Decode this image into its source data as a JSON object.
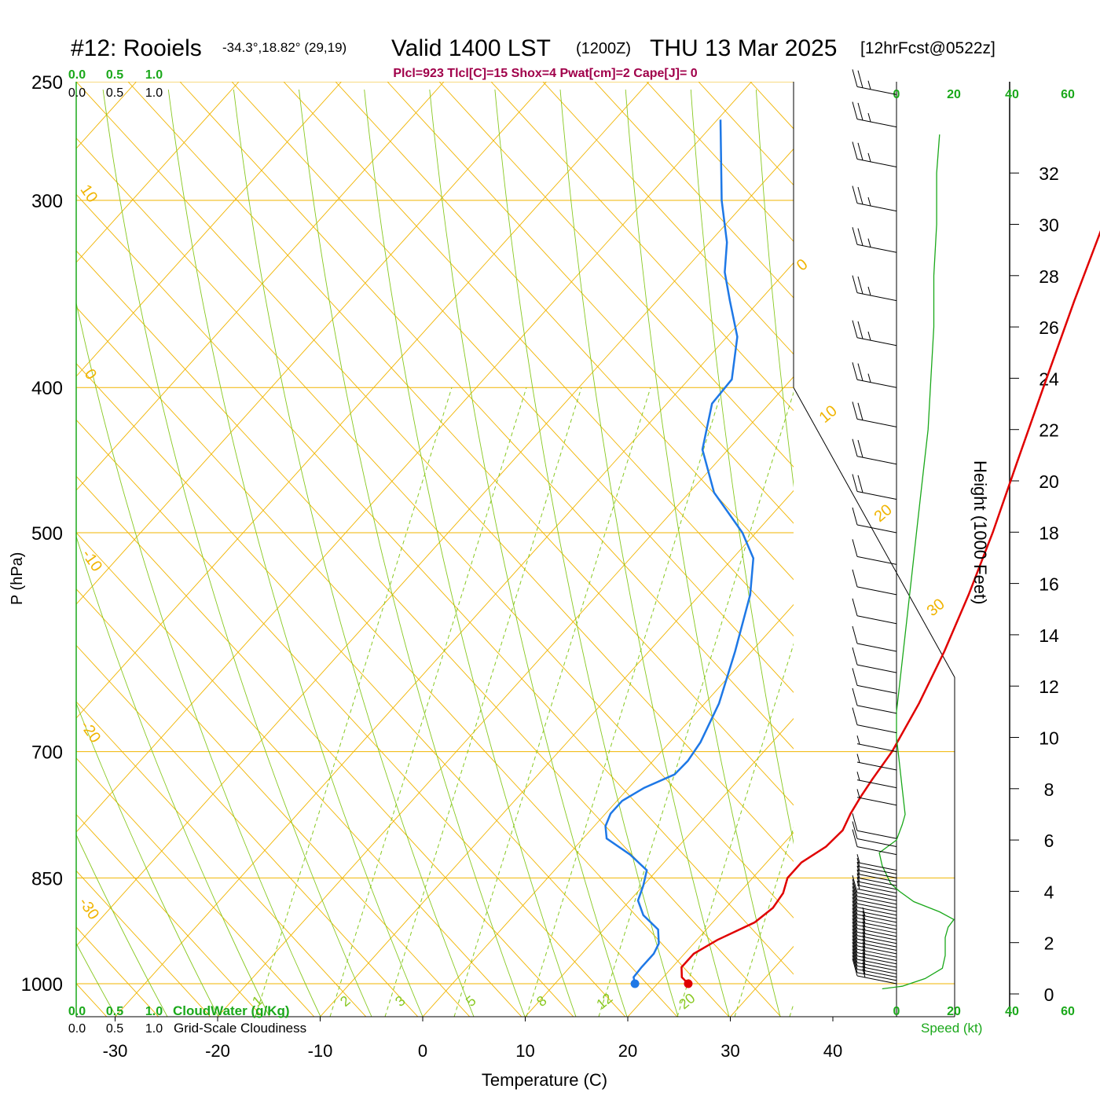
{
  "header": {
    "station": "#12: Rooiels",
    "coords": "-34.3°,18.82° (29,19)",
    "valid": "Valid 1400 LST",
    "utc": "(1200Z)",
    "date": "THU 13 Mar 2025",
    "forecast": "[12hrFcst@0522z]"
  },
  "indices_text": "Plcl=923 Tlcl[C]=15 Shox=4 Pwat[cm]=2 Cape[J]= 0",
  "colors": {
    "isobar": "#f0b400",
    "dry_adiabat": "#f0b400",
    "moist_adiabat": "#88c820",
    "mixing_ratio": "#88c820",
    "temperature": "#e00000",
    "dewpoint": "#1e78e6",
    "axis_green": "#1aa81a",
    "indices": "#a0004a"
  },
  "chart_data": {
    "type": "skew-t",
    "xlabel": "Temperature (C)",
    "ylabel": "P (hPa)",
    "right_label": "Height (1000 Feet)",
    "x_ticks": [
      "-30",
      "-20",
      "-10",
      "0",
      "10",
      "20",
      "30",
      "40"
    ],
    "p_ticks": [
      "250",
      "300",
      "400",
      "500",
      "700",
      "850",
      "1000"
    ],
    "height_ticks": [
      "0",
      "2",
      "4",
      "6",
      "8",
      "10",
      "12",
      "14",
      "16",
      "18",
      "20",
      "22",
      "24",
      "26",
      "28",
      "30",
      "32"
    ],
    "dry_adiabat_labels": [
      "10",
      "0",
      "-10",
      "-20",
      "-30",
      "0",
      "10",
      "20",
      "30"
    ],
    "mixing_ratio_labels": [
      "1",
      "2",
      "3",
      "5",
      "8",
      "12",
      "20"
    ],
    "cloud_axis_top_green": [
      "0.0",
      "0.5",
      "1.0"
    ],
    "cloud_axis_top_black": [
      "0.0",
      "0.5",
      "1.0"
    ],
    "cloud_axis_bottom_green": [
      "0.0",
      "0.5",
      "1.0"
    ],
    "cloud_axis_bottom_black": [
      "0.0",
      "0.5",
      "1.0"
    ],
    "cloudwater_label": "CloudWater (g/Kg)",
    "cloudiness_label": "Grid-Scale Cloudiness",
    "speed_ticks": [
      "0",
      "20",
      "40",
      "60"
    ],
    "speed_label": "Speed (kt)",
    "temperature_profile": [
      {
        "p": 1000,
        "t": 23.0
      },
      {
        "p": 990,
        "t": 21.8
      },
      {
        "p": 975,
        "t": 20.9
      },
      {
        "p": 955,
        "t": 20.9
      },
      {
        "p": 935,
        "t": 22.0
      },
      {
        "p": 910,
        "t": 24.1
      },
      {
        "p": 890,
        "t": 24.6
      },
      {
        "p": 870,
        "t": 24.3
      },
      {
        "p": 850,
        "t": 23.4
      },
      {
        "p": 830,
        "t": 23.4
      },
      {
        "p": 810,
        "t": 24.4
      },
      {
        "p": 790,
        "t": 24.6
      },
      {
        "p": 770,
        "t": 23.9
      },
      {
        "p": 750,
        "t": 23.4
      },
      {
        "p": 730,
        "t": 23.0
      },
      {
        "p": 700,
        "t": 22.5
      },
      {
        "p": 650,
        "t": 20.9
      },
      {
        "p": 600,
        "t": 18.8
      },
      {
        "p": 550,
        "t": 16.2
      },
      {
        "p": 500,
        "t": 13.1
      },
      {
        "p": 450,
        "t": 9.4
      },
      {
        "p": 400,
        "t": 5.3
      },
      {
        "p": 350,
        "t": 0.7
      },
      {
        "p": 300,
        "t": -4.4
      },
      {
        "p": 265,
        "t": -8.8
      }
    ],
    "dewpoint_profile": [
      {
        "p": 1000,
        "t": 17.8
      },
      {
        "p": 990,
        "t": 17.1
      },
      {
        "p": 975,
        "t": 17.0
      },
      {
        "p": 955,
        "t": 17.0
      },
      {
        "p": 940,
        "t": 16.6
      },
      {
        "p": 920,
        "t": 15.3
      },
      {
        "p": 900,
        "t": 12.6
      },
      {
        "p": 880,
        "t": 10.8
      },
      {
        "p": 860,
        "t": 10.0
      },
      {
        "p": 840,
        "t": 9.0
      },
      {
        "p": 820,
        "t": 6.0
      },
      {
        "p": 800,
        "t": 2.3
      },
      {
        "p": 785,
        "t": 1.1
      },
      {
        "p": 770,
        "t": 0.5
      },
      {
        "p": 755,
        "t": 0.5
      },
      {
        "p": 740,
        "t": 1.5
      },
      {
        "p": 725,
        "t": 3.3
      },
      {
        "p": 710,
        "t": 3.4
      },
      {
        "p": 690,
        "t": 3.0
      },
      {
        "p": 650,
        "t": 1.4
      },
      {
        "p": 600,
        "t": -1.6
      },
      {
        "p": 550,
        "t": -5.1
      },
      {
        "p": 520,
        "t": -8.0
      },
      {
        "p": 500,
        "t": -11.3
      },
      {
        "p": 470,
        "t": -17.6
      },
      {
        "p": 440,
        "t": -22.5
      },
      {
        "p": 410,
        "t": -25.6
      },
      {
        "p": 395,
        "t": -25.8
      },
      {
        "p": 370,
        "t": -29.0
      },
      {
        "p": 350,
        "t": -32.9
      },
      {
        "p": 335,
        "t": -35.9
      },
      {
        "p": 320,
        "t": -38.3
      },
      {
        "p": 300,
        "t": -42.5
      },
      {
        "p": 265,
        "t": -49.7
      }
    ],
    "surface_temperature": 23.0,
    "surface_dewpoint": 17.8,
    "wind_speed_profile": [
      {
        "h": 0.2,
        "kt": -5
      },
      {
        "h": 0.3,
        "kt": 2
      },
      {
        "h": 0.6,
        "kt": 10
      },
      {
        "h": 1.0,
        "kt": 16
      },
      {
        "h": 1.5,
        "kt": 17
      },
      {
        "h": 2.2,
        "kt": 17
      },
      {
        "h": 2.6,
        "kt": 18
      },
      {
        "h": 2.9,
        "kt": 20
      },
      {
        "h": 3.2,
        "kt": 15
      },
      {
        "h": 3.6,
        "kt": 6
      },
      {
        "h": 4.0,
        "kt": 1
      },
      {
        "h": 4.3,
        "kt": -2
      },
      {
        "h": 5.0,
        "kt": -5
      },
      {
        "h": 5.5,
        "kt": -6
      },
      {
        "h": 6.0,
        "kt": 0
      },
      {
        "h": 6.6,
        "kt": 2
      },
      {
        "h": 7.0,
        "kt": 3
      },
      {
        "h": 8.0,
        "kt": 2
      },
      {
        "h": 9.0,
        "kt": 1
      },
      {
        "h": 10.0,
        "kt": 0
      },
      {
        "h": 11.0,
        "kt": 0
      },
      {
        "h": 12.0,
        "kt": 1
      },
      {
        "h": 14.0,
        "kt": 3
      },
      {
        "h": 16.0,
        "kt": 5
      },
      {
        "h": 18.0,
        "kt": 7
      },
      {
        "h": 20.0,
        "kt": 9
      },
      {
        "h": 22.0,
        "kt": 11
      },
      {
        "h": 24.0,
        "kt": 12
      },
      {
        "h": 26.0,
        "kt": 13
      },
      {
        "h": 28.0,
        "kt": 13
      },
      {
        "h": 30.0,
        "kt": 14
      },
      {
        "h": 32.0,
        "kt": 14
      },
      {
        "h": 33.5,
        "kt": 15
      }
    ],
    "wind_barbs": [
      {
        "p": 1000,
        "kt": 15
      },
      {
        "p": 995,
        "kt": 15
      },
      {
        "p": 990,
        "kt": 15
      },
      {
        "p": 985,
        "kt": 15
      },
      {
        "p": 980,
        "kt": 15
      },
      {
        "p": 975,
        "kt": 15
      },
      {
        "p": 970,
        "kt": 15
      },
      {
        "p": 965,
        "kt": 15
      },
      {
        "p": 960,
        "kt": 15
      },
      {
        "p": 955,
        "kt": 15
      },
      {
        "p": 950,
        "kt": 15
      },
      {
        "p": 945,
        "kt": 15
      },
      {
        "p": 940,
        "kt": 15
      },
      {
        "p": 935,
        "kt": 15
      },
      {
        "p": 930,
        "kt": 15
      },
      {
        "p": 925,
        "kt": 15
      },
      {
        "p": 920,
        "kt": 15
      },
      {
        "p": 915,
        "kt": 15
      },
      {
        "p": 910,
        "kt": 15
      },
      {
        "p": 905,
        "kt": 10
      },
      {
        "p": 900,
        "kt": 10
      },
      {
        "p": 895,
        "kt": 10
      },
      {
        "p": 890,
        "kt": 10
      },
      {
        "p": 885,
        "kt": 10
      },
      {
        "p": 880,
        "kt": 10
      },
      {
        "p": 875,
        "kt": 5
      },
      {
        "p": 870,
        "kt": 5
      },
      {
        "p": 865,
        "kt": 5
      },
      {
        "p": 860,
        "kt": 5
      },
      {
        "p": 855,
        "kt": 5
      },
      {
        "p": 850,
        "kt": 5
      },
      {
        "p": 845,
        "kt": 5
      },
      {
        "p": 840,
        "kt": 5
      },
      {
        "p": 820,
        "kt": 10
      },
      {
        "p": 810,
        "kt": 10
      },
      {
        "p": 800,
        "kt": 10
      },
      {
        "p": 760,
        "kt": 5
      },
      {
        "p": 740,
        "kt": 5
      },
      {
        "p": 720,
        "kt": 5
      },
      {
        "p": 700,
        "kt": 5
      },
      {
        "p": 680,
        "kt": 10
      },
      {
        "p": 660,
        "kt": 10
      },
      {
        "p": 640,
        "kt": 10
      },
      {
        "p": 620,
        "kt": 10
      },
      {
        "p": 600,
        "kt": 10
      },
      {
        "p": 575,
        "kt": 10
      },
      {
        "p": 550,
        "kt": 10
      },
      {
        "p": 525,
        "kt": 10
      },
      {
        "p": 500,
        "kt": 10
      },
      {
        "p": 475,
        "kt": 20
      },
      {
        "p": 450,
        "kt": 20
      },
      {
        "p": 425,
        "kt": 20
      },
      {
        "p": 400,
        "kt": 25
      },
      {
        "p": 375,
        "kt": 25
      },
      {
        "p": 350,
        "kt": 25
      },
      {
        "p": 325,
        "kt": 25
      },
      {
        "p": 305,
        "kt": 25
      },
      {
        "p": 285,
        "kt": 25
      },
      {
        "p": 268,
        "kt": 25
      },
      {
        "p": 255,
        "kt": 25
      }
    ]
  }
}
